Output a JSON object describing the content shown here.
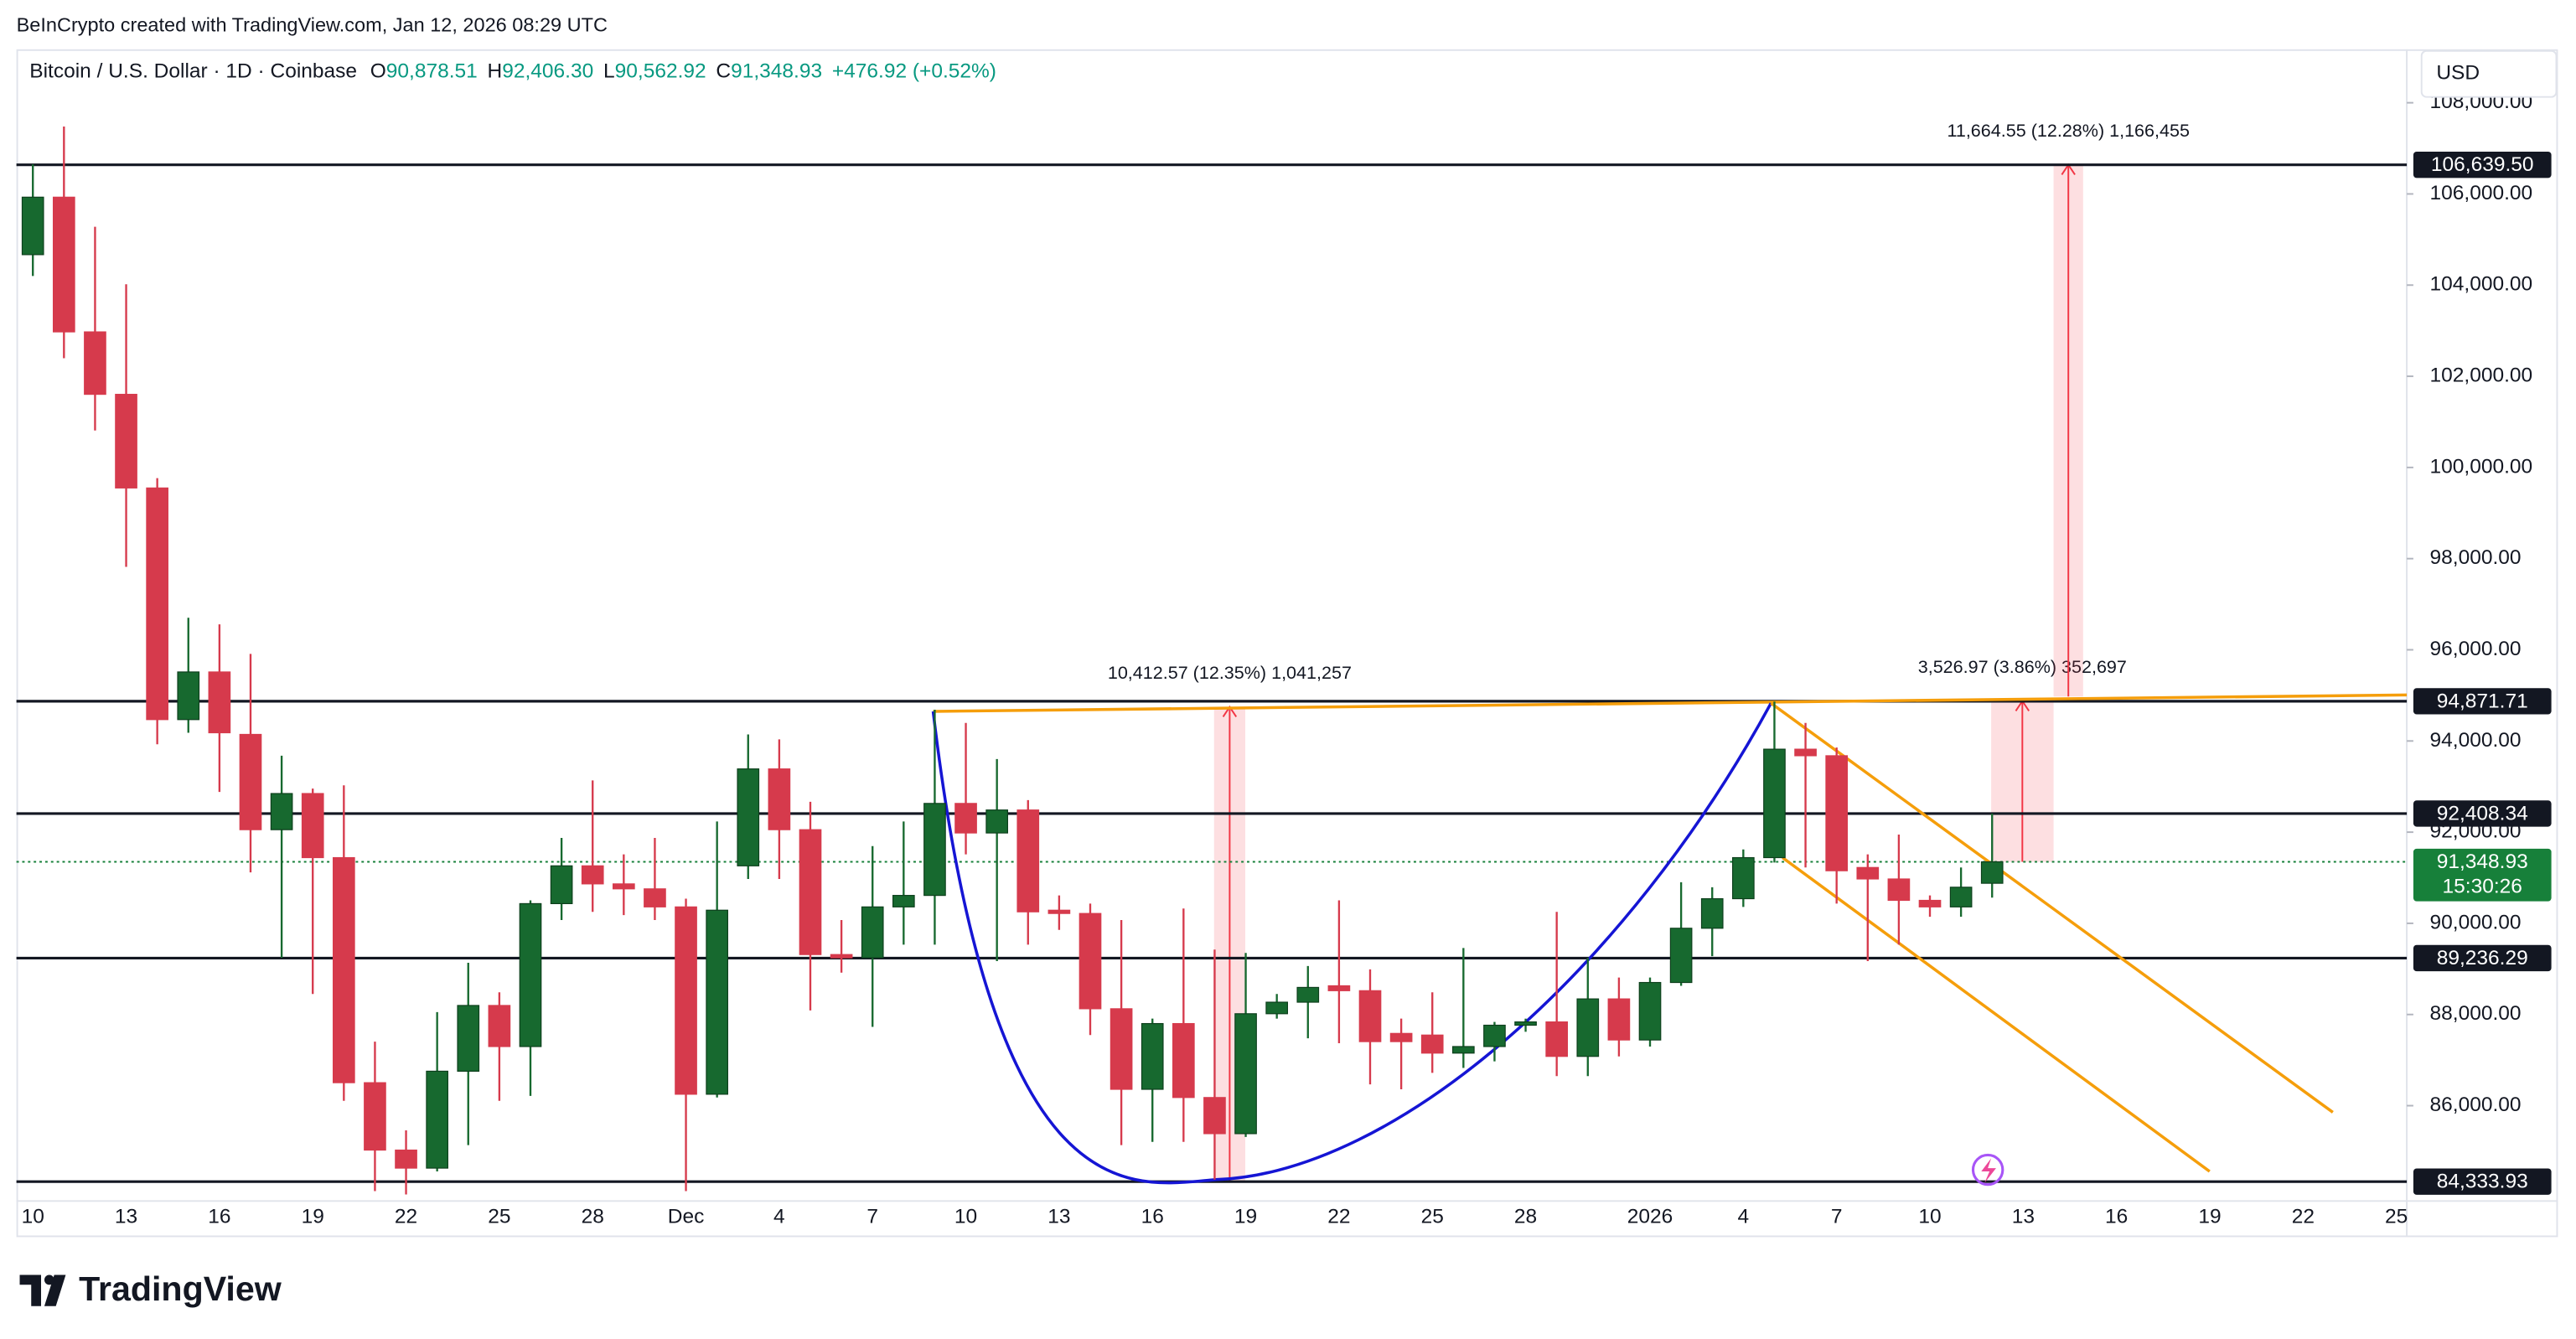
{
  "header": {
    "credit": "BeInCrypto created with TradingView.com, Jan 12, 2026 08:29 UTC",
    "symbol": "Bitcoin / U.S. Dollar · 1D · Coinbase",
    "ohlc": [
      {
        "key": "O",
        "value": "90,878.51"
      },
      {
        "key": "H",
        "value": "92,406.30"
      },
      {
        "key": "L",
        "value": "90,562.92"
      },
      {
        "key": "C",
        "value": "91,348.93"
      }
    ],
    "change": "+476.92 (+0.52%)",
    "currency": "USD",
    "logo_text": "TradingView"
  },
  "chart_data": {
    "type": "candlestick",
    "categories": [
      "10",
      null,
      null,
      "13",
      null,
      null,
      "16",
      null,
      null,
      "19",
      null,
      null,
      "22",
      null,
      null,
      "25",
      null,
      null,
      "28",
      null,
      null,
      "Dec",
      null,
      null,
      "4",
      null,
      null,
      "7",
      null,
      null,
      "10",
      null,
      null,
      "13",
      null,
      null,
      "16",
      null,
      null,
      "19",
      null,
      null,
      "22",
      null,
      null,
      "25",
      null,
      null,
      "28",
      null,
      null,
      null,
      "2026",
      null,
      null,
      "4",
      null,
      null,
      "7",
      null,
      null,
      "10",
      null,
      null,
      "13",
      null,
      null,
      "16",
      null,
      null,
      "19",
      null,
      null,
      "22",
      null,
      null,
      "25"
    ],
    "open": [
      104668,
      105929,
      102974,
      101604,
      99550,
      94469,
      95514,
      94144,
      92054,
      92847,
      91441,
      86504,
      85026,
      84630,
      86756,
      88198,
      87297,
      90432,
      91261,
      90865,
      90756,
      90360,
      86251,
      91261,
      93387,
      92054,
      89315,
      89243,
      90360,
      90612,
      92630,
      91982,
      92486,
      90288,
      90216,
      88126,
      86359,
      87801,
      86179,
      85386,
      88017,
      88270,
      88630,
      88522,
      87585,
      87549,
      87153,
      87297,
      87765,
      87837,
      87081,
      88342,
      87441,
      88702,
      89892,
      90540,
      91441,
      93820,
      93676,
      91225,
      90973,
      90504,
      90360,
      90878.51,
      null,
      null,
      null,
      null,
      null,
      null,
      null,
      null,
      null,
      null,
      null,
      null,
      null
    ],
    "high": [
      106650,
      107479,
      105281,
      104019,
      99766,
      96703,
      96559,
      95910,
      93676,
      92955,
      93027,
      87405,
      85459,
      88053,
      89135,
      88486,
      90504,
      91874,
      93135,
      91513,
      91874,
      90540,
      92234,
      94144,
      94036,
      92667,
      90072,
      91694,
      92234,
      94685,
      94396,
      93604,
      92703,
      90612,
      90432,
      90072,
      87909,
      90324,
      89423,
      89351,
      88450,
      89063,
      90504,
      88990,
      87909,
      88486,
      89459,
      87837,
      87909,
      90252,
      89243,
      88810,
      88810,
      90901,
      90792,
      91621,
      94865,
      94396,
      93856,
      91513,
      91946,
      90612,
      91225,
      92406.3,
      null,
      null,
      null,
      null,
      null,
      null,
      null,
      null,
      null,
      null,
      null,
      null,
      null
    ],
    "low": [
      104200,
      102397,
      100812,
      97820,
      93928,
      94180,
      92883,
      91117,
      89243,
      88450,
      86107,
      84125,
      84053,
      84558,
      85134,
      86107,
      86215,
      90072,
      90252,
      90180,
      90072,
      84125,
      86179,
      90973,
      90973,
      88089,
      88918,
      87729,
      89531,
      89531,
      91513,
      89171,
      89531,
      89856,
      87549,
      85134,
      85206,
      85206,
      84378,
      85314,
      87909,
      87477,
      87369,
      86468,
      86359,
      86720,
      86828,
      86972,
      87621,
      86648,
      86648,
      87081,
      87297,
      88630,
      89279,
      90360,
      91333,
      91225,
      90432,
      89171,
      89531,
      90144,
      90144,
      90562.92,
      null,
      null,
      null,
      null,
      null,
      null,
      null,
      null,
      null,
      null,
      null,
      null,
      null
    ],
    "close": [
      105929,
      102974,
      101604,
      99550,
      94469,
      95514,
      94180,
      92054,
      92847,
      91441,
      86504,
      85026,
      84630,
      86756,
      88198,
      87297,
      90432,
      91261,
      90865,
      90756,
      90360,
      86251,
      90288,
      93387,
      92054,
      89315,
      89243,
      90360,
      90612,
      92630,
      91982,
      92486,
      90252,
      90216,
      88126,
      86359,
      87801,
      86179,
      85386,
      88017,
      88270,
      88594,
      88522,
      87405,
      87405,
      87153,
      87297,
      87765,
      87837,
      87081,
      88342,
      87441,
      88702,
      89892,
      90540,
      91441,
      93820,
      93676,
      91153,
      90973,
      90504,
      90360,
      90792,
      91348.93,
      null,
      null,
      null,
      null,
      null,
      null,
      null,
      null,
      null,
      null,
      null,
      null,
      null
    ],
    "up_color": "#17692f",
    "down_color": "#d63a4c",
    "ylim": [
      83945,
      109173
    ],
    "yticks": [
      {
        "value": 86000,
        "label": "86,000.00"
      },
      {
        "value": 88000,
        "label": "88,000.00"
      },
      {
        "value": 90000,
        "label": "90,000.00"
      },
      {
        "value": 92000,
        "label": "92,000.00"
      },
      {
        "value": 94000,
        "label": "94,000.00"
      },
      {
        "value": 96000,
        "label": "96,000.00"
      },
      {
        "value": 98000,
        "label": "98,000.00"
      },
      {
        "value": 100000,
        "label": "100,000.00"
      },
      {
        "value": 102000,
        "label": "102,000.00"
      },
      {
        "value": 104000,
        "label": "104,000.00"
      },
      {
        "value": 106000,
        "label": "106,000.00"
      },
      {
        "value": 108000,
        "label": "108,000.00"
      }
    ],
    "grid": false,
    "levels": [
      {
        "value": 106639.5,
        "label": "106,639.50"
      },
      {
        "value": 94871.71,
        "label": "94,871.71"
      },
      {
        "value": 92408.34,
        "label": "92,408.34"
      },
      {
        "value": 89236.29,
        "label": "89,236.29"
      },
      {
        "value": 84333.93,
        "label": "84,333.93"
      }
    ],
    "last_price": {
      "value": 91348.93,
      "label": "91,348.93",
      "countdown": "15:30:26",
      "color": "#17803a"
    },
    "measures": [
      {
        "label": "10,412.57 (12.35%) 1,041,257",
        "from": 84333.93,
        "to": 94746.5
      },
      {
        "label": "3,526.97 (3.86%) 352,697",
        "from": 91348.93,
        "to": 94875.9
      },
      {
        "label": "11,664.55 (12.28%) 1,166,455",
        "from": 94974.95,
        "to": 106639.5
      }
    ]
  }
}
